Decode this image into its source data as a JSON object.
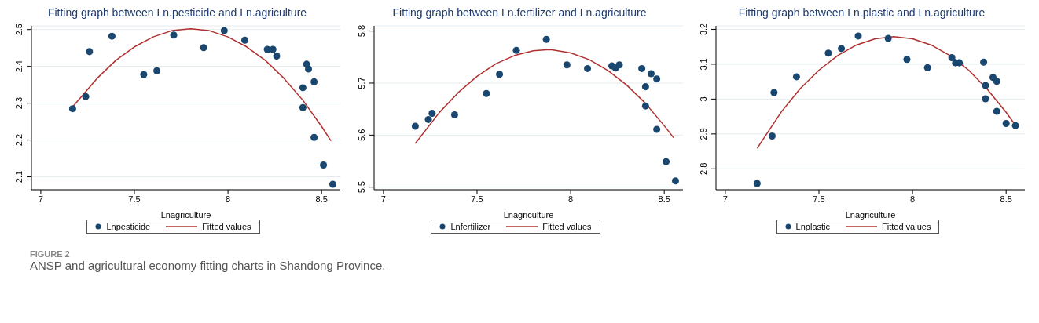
{
  "chart_data": [
    {
      "type": "scatter",
      "title": "Fitting graph between Ln.pesticide and Ln.agriculture",
      "xlabel": "Lnagriculture",
      "xlim": [
        6.95,
        8.6
      ],
      "xticks": [
        7,
        7.5,
        8,
        8.5
      ],
      "ylim": [
        2.065,
        2.51
      ],
      "yticks": [
        2.1,
        2.2,
        2.3,
        2.4,
        2.5
      ],
      "grid": "y",
      "legend": "bottom",
      "annotations": [
        "FIGURE 2",
        "ANSP and agricultural economy fitting charts in Shandong Province."
      ],
      "series": [
        {
          "name": "Lnpesticide",
          "marker": "circle",
          "color": "#1a476f",
          "x": [
            7.17,
            7.24,
            7.26,
            7.38,
            7.55,
            7.62,
            7.71,
            7.87,
            7.98,
            8.09,
            8.21,
            8.24,
            8.26,
            8.42,
            8.4,
            8.4,
            8.43,
            8.46,
            8.46,
            8.51,
            8.56
          ],
          "values": [
            2.285,
            2.318,
            2.44,
            2.482,
            2.378,
            2.388,
            2.485,
            2.451,
            2.497,
            2.471,
            2.446,
            2.446,
            2.428,
            2.406,
            2.342,
            2.288,
            2.393,
            2.358,
            2.207,
            2.132,
            2.08
          ]
        },
        {
          "name": "Fitted values",
          "type": "line",
          "marker": "none",
          "color": "#b03030",
          "x": [
            7.17,
            7.3,
            7.4,
            7.5,
            7.6,
            7.7,
            7.8,
            7.9,
            8.0,
            8.1,
            8.2,
            8.3,
            8.4,
            8.5,
            8.55
          ],
          "values": [
            2.29,
            2.367,
            2.416,
            2.453,
            2.48,
            2.497,
            2.502,
            2.497,
            2.48,
            2.453,
            2.416,
            2.367,
            2.308,
            2.237,
            2.198
          ]
        }
      ]
    },
    {
      "type": "scatter",
      "title": "Fitting graph between Ln.fertilizer and Ln.agriculture",
      "xlabel": "Lnagriculture",
      "xlim": [
        6.95,
        8.6
      ],
      "xticks": [
        7,
        7.5,
        8,
        8.5
      ],
      "ylim": [
        5.495,
        5.81
      ],
      "yticks": [
        5.5,
        5.6,
        5.7,
        5.8
      ],
      "grid": "y",
      "legend": "bottom",
      "series": [
        {
          "name": "Lnfertilizer",
          "marker": "circle",
          "color": "#1a476f",
          "x": [
            7.17,
            7.24,
            7.26,
            7.38,
            7.55,
            7.62,
            7.71,
            7.87,
            7.98,
            8.09,
            8.22,
            8.24,
            8.26,
            8.38,
            8.4,
            8.4,
            8.43,
            8.46,
            8.46,
            8.51,
            8.56
          ],
          "values": [
            5.617,
            5.63,
            5.642,
            5.639,
            5.68,
            5.717,
            5.763,
            5.784,
            5.735,
            5.728,
            5.733,
            5.729,
            5.735,
            5.728,
            5.693,
            5.656,
            5.718,
            5.708,
            5.611,
            5.549,
            5.512
          ]
        },
        {
          "name": "Fitted values",
          "type": "line",
          "marker": "none",
          "color": "#b03030",
          "x": [
            7.17,
            7.3,
            7.4,
            7.5,
            7.6,
            7.7,
            7.8,
            7.87,
            7.9,
            8.0,
            8.1,
            8.2,
            8.3,
            8.4,
            8.5,
            8.55
          ],
          "values": [
            5.584,
            5.644,
            5.682,
            5.713,
            5.737,
            5.753,
            5.762,
            5.764,
            5.764,
            5.758,
            5.745,
            5.724,
            5.696,
            5.661,
            5.618,
            5.595
          ]
        }
      ]
    },
    {
      "type": "scatter",
      "title": "Fitting graph between Ln.plastic and Ln.agriculture",
      "xlabel": "Lnagriculture",
      "xlim": [
        6.95,
        8.6
      ],
      "xticks": [
        7,
        7.5,
        8,
        8.5
      ],
      "ylim": [
        2.74,
        3.21
      ],
      "yticks": [
        2.8,
        2.9,
        3,
        3.1,
        3.2
      ],
      "grid": "y",
      "legend": "bottom",
      "series": [
        {
          "name": "Lnplastic",
          "marker": "circle",
          "color": "#1a476f",
          "x": [
            7.17,
            7.25,
            7.26,
            7.38,
            7.55,
            7.62,
            7.71,
            7.87,
            7.97,
            8.08,
            8.21,
            8.23,
            8.25,
            8.38,
            8.39,
            8.39,
            8.43,
            8.45,
            8.45,
            8.5,
            8.55
          ],
          "values": [
            2.758,
            2.894,
            3.019,
            3.064,
            3.132,
            3.145,
            3.181,
            3.174,
            3.114,
            3.09,
            3.119,
            3.104,
            3.104,
            3.106,
            3.039,
            3.001,
            3.062,
            3.051,
            2.965,
            2.93,
            2.924
          ]
        },
        {
          "name": "Fitted values",
          "type": "line",
          "marker": "none",
          "color": "#b03030",
          "x": [
            7.17,
            7.3,
            7.4,
            7.5,
            7.6,
            7.7,
            7.8,
            7.9,
            8.0,
            8.1,
            8.2,
            8.3,
            8.4,
            8.5,
            8.55
          ],
          "values": [
            2.859,
            2.964,
            3.03,
            3.083,
            3.125,
            3.155,
            3.173,
            3.179,
            3.173,
            3.155,
            3.125,
            3.083,
            3.028,
            2.962,
            2.925
          ]
        }
      ]
    }
  ]
}
